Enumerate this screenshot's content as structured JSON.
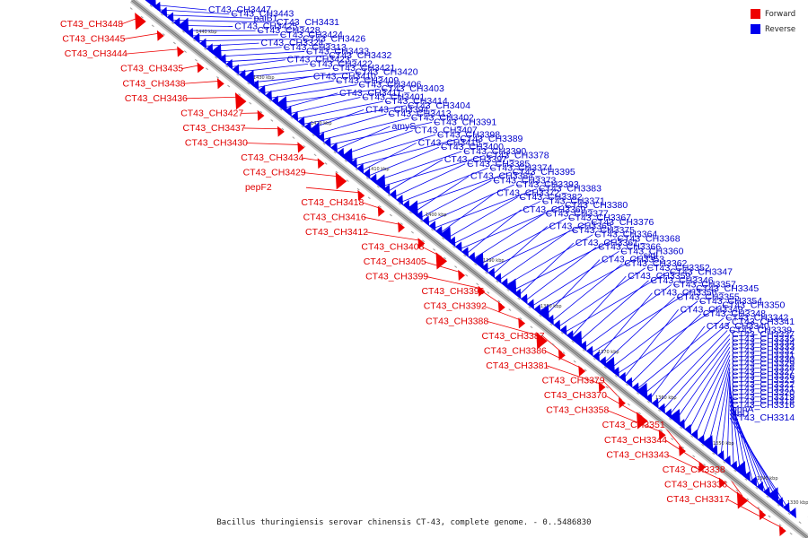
{
  "caption": "Bacillus thuringiensis serovar chinensis CT-43, complete genome. - 0..5486830",
  "legend": [
    {
      "label": "Forward",
      "color": "#ee0000"
    },
    {
      "label": "Reverse",
      "color": "#0000ee"
    }
  ],
  "scale_ticks": [
    {
      "label": "1440 kbp",
      "pos": 0.08
    },
    {
      "label": "1430 kbp",
      "pos": 0.165
    },
    {
      "label": "1420 kbp",
      "pos": 0.25
    },
    {
      "label": "1410 kbp",
      "pos": 0.335
    },
    {
      "label": "1400 kbp",
      "pos": 0.42
    },
    {
      "label": "1390 kbp",
      "pos": 0.505
    },
    {
      "label": "1380 kbp",
      "pos": 0.59
    },
    {
      "label": "1370 kbp",
      "pos": 0.675
    },
    {
      "label": "1360 kbp",
      "pos": 0.76
    },
    {
      "label": "1350 kbp",
      "pos": 0.845
    },
    {
      "label": "1340 kbp",
      "pos": 0.91
    },
    {
      "label": "1330 kbp",
      "pos": 0.955
    },
    {
      "label": "1320 kbp",
      "pos": 0.985
    }
  ],
  "genes": [
    {
      "label": "CT43_CH3448",
      "strand": "forward",
      "pos": 0.0
    },
    {
      "label": "CT43_CH3447",
      "strand": "reverse",
      "pos": 0.005
    },
    {
      "label": "CT43_CH3445",
      "strand": "forward",
      "pos": 0.02
    },
    {
      "label": "CT43_CH3443",
      "strand": "reverse",
      "pos": 0.03
    },
    {
      "label": "CT43_CH3444",
      "strand": "forward",
      "pos": 0.04
    },
    {
      "label": "paiB1",
      "strand": "reverse",
      "pos": 0.05
    },
    {
      "label": "CT43_CH3435",
      "strand": "forward",
      "pos": 0.06
    },
    {
      "label": "CT43_CH3438",
      "strand": "forward",
      "pos": 0.07
    },
    {
      "label": "CT43_CH3431",
      "strand": "reverse",
      "pos": 0.08
    },
    {
      "label": "CT43_CH3436",
      "strand": "forward",
      "pos": 0.09
    },
    {
      "label": "CT43_CH3427",
      "strand": "forward",
      "pos": 0.1
    },
    {
      "label": "CT43_CH3437",
      "strand": "forward",
      "pos": 0.11
    },
    {
      "label": "CT43_CH3430",
      "strand": "forward",
      "pos": 0.12
    },
    {
      "label": "CT43_CH3425",
      "strand": "reverse",
      "pos": 0.13
    },
    {
      "label": "CT43_CH3428",
      "strand": "reverse",
      "pos": 0.14
    },
    {
      "label": "CT43_CH3424",
      "strand": "reverse",
      "pos": 0.15
    },
    {
      "label": "CT43_CH3434",
      "strand": "forward",
      "pos": 0.16
    },
    {
      "label": "CT43_CH3426",
      "strand": "reverse",
      "pos": 0.17
    },
    {
      "label": "CT43_CH3429",
      "strand": "forward",
      "pos": 0.18
    },
    {
      "label": "pepF2",
      "strand": "forward",
      "pos": 0.19
    },
    {
      "label": "CT43_CH3418",
      "strand": "forward",
      "pos": 0.2
    },
    {
      "label": "CT43_CH3416",
      "strand": "forward",
      "pos": 0.21
    },
    {
      "label": "CT43_CH3412",
      "strand": "forward",
      "pos": 0.22
    },
    {
      "label": "CT43_CH3408",
      "strand": "forward",
      "pos": 0.23
    },
    {
      "label": "CT43_CH3405",
      "strand": "forward",
      "pos": 0.24
    },
    {
      "label": "CT43_CH3399",
      "strand": "forward",
      "pos": 0.25
    },
    {
      "label": "CT43_CH3396",
      "strand": "forward",
      "pos": 0.26
    },
    {
      "label": "CT43_CH3392",
      "strand": "forward",
      "pos": 0.27
    },
    {
      "label": "CT43_CH3388",
      "strand": "forward",
      "pos": 0.28
    },
    {
      "label": "CT43_CH3387",
      "strand": "forward",
      "pos": 0.29
    },
    {
      "label": "CT43_CH3386",
      "strand": "forward",
      "pos": 0.3
    },
    {
      "label": "CT43_CH3381",
      "strand": "forward",
      "pos": 0.31
    },
    {
      "label": "CT43_CH3379",
      "strand": "forward",
      "pos": 0.32
    },
    {
      "label": "CT43_CH3370",
      "strand": "forward",
      "pos": 0.33
    },
    {
      "label": "CT43_CH3358",
      "strand": "forward",
      "pos": 0.34
    },
    {
      "label": "CT43_CH3351",
      "strand": "forward",
      "pos": 0.35
    },
    {
      "label": "CT43_CH3344",
      "strand": "forward",
      "pos": 0.36
    },
    {
      "label": "CT43_CH3343",
      "strand": "forward",
      "pos": 0.37
    },
    {
      "label": "CT43_CH3338",
      "strand": "forward",
      "pos": 0.38
    },
    {
      "label": "CT43_CH3336",
      "strand": "forward",
      "pos": 0.39
    },
    {
      "label": "CT43_CH3324",
      "strand": "reverse",
      "pos": 0.4
    },
    {
      "label": "CT43_CH3317",
      "strand": "forward",
      "pos": 0.41
    },
    {
      "label": "CT43_CH3313",
      "strand": "reverse",
      "pos": 0.42
    },
    {
      "label": "CT43_CH3433",
      "strand": "reverse",
      "pos": 0.43
    },
    {
      "label": "CT43_CH3432",
      "strand": "reverse",
      "pos": 0.44
    },
    {
      "label": "CT43_CH3423",
      "strand": "reverse",
      "pos": 0.45
    },
    {
      "label": "CT43_CH3422",
      "strand": "reverse",
      "pos": 0.46
    },
    {
      "label": "CT43_CH3421",
      "strand": "reverse",
      "pos": 0.47
    },
    {
      "label": "CT43_CH3420",
      "strand": "reverse",
      "pos": 0.48
    },
    {
      "label": "CT43_CH3410",
      "strand": "reverse",
      "pos": 0.49
    },
    {
      "label": "CT43_CH3409",
      "strand": "reverse",
      "pos": 0.5
    },
    {
      "label": "CT43_CH3406",
      "strand": "reverse",
      "pos": 0.51
    },
    {
      "label": "CT43_CH3403",
      "strand": "reverse",
      "pos": 0.52
    },
    {
      "label": "CT43_CH3411",
      "strand": "reverse",
      "pos": 0.53
    },
    {
      "label": "CT43_CH3401",
      "strand": "reverse",
      "pos": 0.54
    },
    {
      "label": "CT43_CH3414",
      "strand": "reverse",
      "pos": 0.55
    },
    {
      "label": "CT43_CH3404",
      "strand": "reverse",
      "pos": 0.56
    },
    {
      "label": "CT43_CH3394",
      "strand": "reverse",
      "pos": 0.57
    },
    {
      "label": "CT43_CH3413",
      "strand": "reverse",
      "pos": 0.58
    },
    {
      "label": "CT43_CH3402",
      "strand": "reverse",
      "pos": 0.59
    },
    {
      "label": "CT43_CH3391",
      "strand": "reverse",
      "pos": 0.6
    },
    {
      "label": "amyS",
      "strand": "reverse",
      "pos": 0.61
    },
    {
      "label": "CT43_CH3407",
      "strand": "reverse",
      "pos": 0.62
    },
    {
      "label": "CT43_CH3398",
      "strand": "reverse",
      "pos": 0.63
    },
    {
      "label": "CT43_CH3389",
      "strand": "reverse",
      "pos": 0.64
    },
    {
      "label": "CT43_CH3415",
      "strand": "reverse",
      "pos": 0.65
    },
    {
      "label": "CT43_CH3400",
      "strand": "reverse",
      "pos": 0.66
    },
    {
      "label": "CT43_CH3390",
      "strand": "reverse",
      "pos": 0.67
    },
    {
      "label": "CT43_CH3378",
      "strand": "reverse",
      "pos": 0.68
    },
    {
      "label": "CT43_CH3397",
      "strand": "reverse",
      "pos": 0.69
    },
    {
      "label": "CT43_CH3385",
      "strand": "reverse",
      "pos": 0.7
    },
    {
      "label": "CT43_CH3374",
      "strand": "reverse",
      "pos": 0.71
    },
    {
      "label": "CT43_CH3395",
      "strand": "reverse",
      "pos": 0.72
    },
    {
      "label": "CT43_CH3384",
      "strand": "reverse",
      "pos": 0.73
    },
    {
      "label": "CT43_CH3373",
      "strand": "reverse",
      "pos": 0.74
    },
    {
      "label": "CT43_CH3393",
      "strand": "reverse",
      "pos": 0.75
    },
    {
      "label": "CT43_CH3383",
      "strand": "reverse",
      "pos": 0.76
    },
    {
      "label": "CT43_CH3372",
      "strand": "reverse",
      "pos": 0.77
    },
    {
      "label": "CT43_CH3382",
      "strand": "reverse",
      "pos": 0.78
    },
    {
      "label": "CT43_CH3371",
      "strand": "reverse",
      "pos": 0.79
    },
    {
      "label": "CT43_CH3380",
      "strand": "reverse",
      "pos": 0.8
    },
    {
      "label": "CT43_CH3369",
      "strand": "reverse",
      "pos": 0.81
    },
    {
      "label": "CT43_CH3377",
      "strand": "reverse",
      "pos": 0.82
    },
    {
      "label": "CT43_CH3367",
      "strand": "reverse",
      "pos": 0.83
    },
    {
      "label": "CT43_CH3376",
      "strand": "reverse",
      "pos": 0.84
    },
    {
      "label": "CT43_CH3365",
      "strand": "reverse",
      "pos": 0.85
    },
    {
      "label": "CT43_CH3375",
      "strand": "reverse",
      "pos": 0.86
    },
    {
      "label": "CT43_CH3364",
      "strand": "reverse",
      "pos": 0.87
    },
    {
      "label": "CT43_CH3368",
      "strand": "reverse",
      "pos": 0.88
    },
    {
      "label": "CT43_CH3361",
      "strand": "reverse",
      "pos": 0.89
    },
    {
      "label": "CT43_CH3366",
      "strand": "reverse",
      "pos": 0.9
    },
    {
      "label": "CT43_CH3360",
      "strand": "reverse",
      "pos": 0.91
    },
    {
      "label": "sigI",
      "strand": "reverse",
      "pos": 0.92
    },
    {
      "label": "CT43_CH3353",
      "strand": "reverse",
      "pos": 0.93
    },
    {
      "label": "CT43_CH3362",
      "strand": "reverse",
      "pos": 0.94
    },
    {
      "label": "CT43_CH3352",
      "strand": "reverse",
      "pos": 0.95
    },
    {
      "label": "CT43_CH3347",
      "strand": "reverse",
      "pos": 0.96
    },
    {
      "label": "CT43_CH3359",
      "strand": "reverse",
      "pos": 0.97
    },
    {
      "label": "CT43_CH3346",
      "strand": "reverse",
      "pos": 0.98
    },
    {
      "label": "CT43_CH3357",
      "strand": "reverse",
      "pos": 0.99
    },
    {
      "label": "CT43_CH3345",
      "strand": "reverse",
      "pos": 1.0
    },
    {
      "label": "CT43_CH3356",
      "strand": "reverse",
      "pos": 0.905
    },
    {
      "label": "CT43_CH3355",
      "strand": "reverse",
      "pos": 0.915
    },
    {
      "label": "CT43_CH3354",
      "strand": "reverse",
      "pos": 0.925
    },
    {
      "label": "CT43_CH3350",
      "strand": "reverse",
      "pos": 0.935
    },
    {
      "label": "CT43_CH3349",
      "strand": "reverse",
      "pos": 0.945
    },
    {
      "label": "CT43_CH3348",
      "strand": "reverse",
      "pos": 0.955
    },
    {
      "label": "CT43_CH3342",
      "strand": "reverse",
      "pos": 0.965
    },
    {
      "label": "CT43_CH3341",
      "strand": "reverse",
      "pos": 0.975
    },
    {
      "label": "CT43_CH3340",
      "strand": "reverse",
      "pos": 0.985
    },
    {
      "label": "CT43_CH3339",
      "strand": "reverse",
      "pos": 0.995
    },
    {
      "label": "CT43_CH3337",
      "strand": "reverse",
      "pos": 0.97
    },
    {
      "label": "CT43_CH3335",
      "strand": "reverse",
      "pos": 0.972
    },
    {
      "label": "CT43_CH3334",
      "strand": "reverse",
      "pos": 0.974
    },
    {
      "label": "CT43_CH3333",
      "strand": "reverse",
      "pos": 0.976
    },
    {
      "label": "CT43_CH3332",
      "strand": "reverse",
      "pos": 0.978
    },
    {
      "label": "CT43_CH3331",
      "strand": "reverse",
      "pos": 0.98
    },
    {
      "label": "CT43_CH3330",
      "strand": "reverse",
      "pos": 0.982
    },
    {
      "label": "CT43_CH3329",
      "strand": "reverse",
      "pos": 0.984
    },
    {
      "label": "CT43_CH3328",
      "strand": "reverse",
      "pos": 0.986
    },
    {
      "label": "CT43_CH3327",
      "strand": "reverse",
      "pos": 0.988
    },
    {
      "label": "CT43_CH3326",
      "strand": "reverse",
      "pos": 0.99
    },
    {
      "label": "CT43_CH3323",
      "strand": "reverse",
      "pos": 0.992
    },
    {
      "label": "CT43_CH3322",
      "strand": "reverse",
      "pos": 0.993
    },
    {
      "label": "CT43_CH3321",
      "strand": "reverse",
      "pos": 0.994
    },
    {
      "label": "CT43_CH3320",
      "strand": "reverse",
      "pos": 0.995
    },
    {
      "label": "CT43_CH3319",
      "strand": "reverse",
      "pos": 0.996
    },
    {
      "label": "CT43_CH3318",
      "strand": "reverse",
      "pos": 0.997
    },
    {
      "label": "CT43_CH3316",
      "strand": "reverse",
      "pos": 0.998
    },
    {
      "label": "phnA",
      "strand": "reverse",
      "pos": 0.9985
    },
    {
      "label": "ribD",
      "strand": "reverse",
      "pos": 0.999
    },
    {
      "label": "CT43_CH3314",
      "strand": "reverse",
      "pos": 0.9995
    }
  ]
}
